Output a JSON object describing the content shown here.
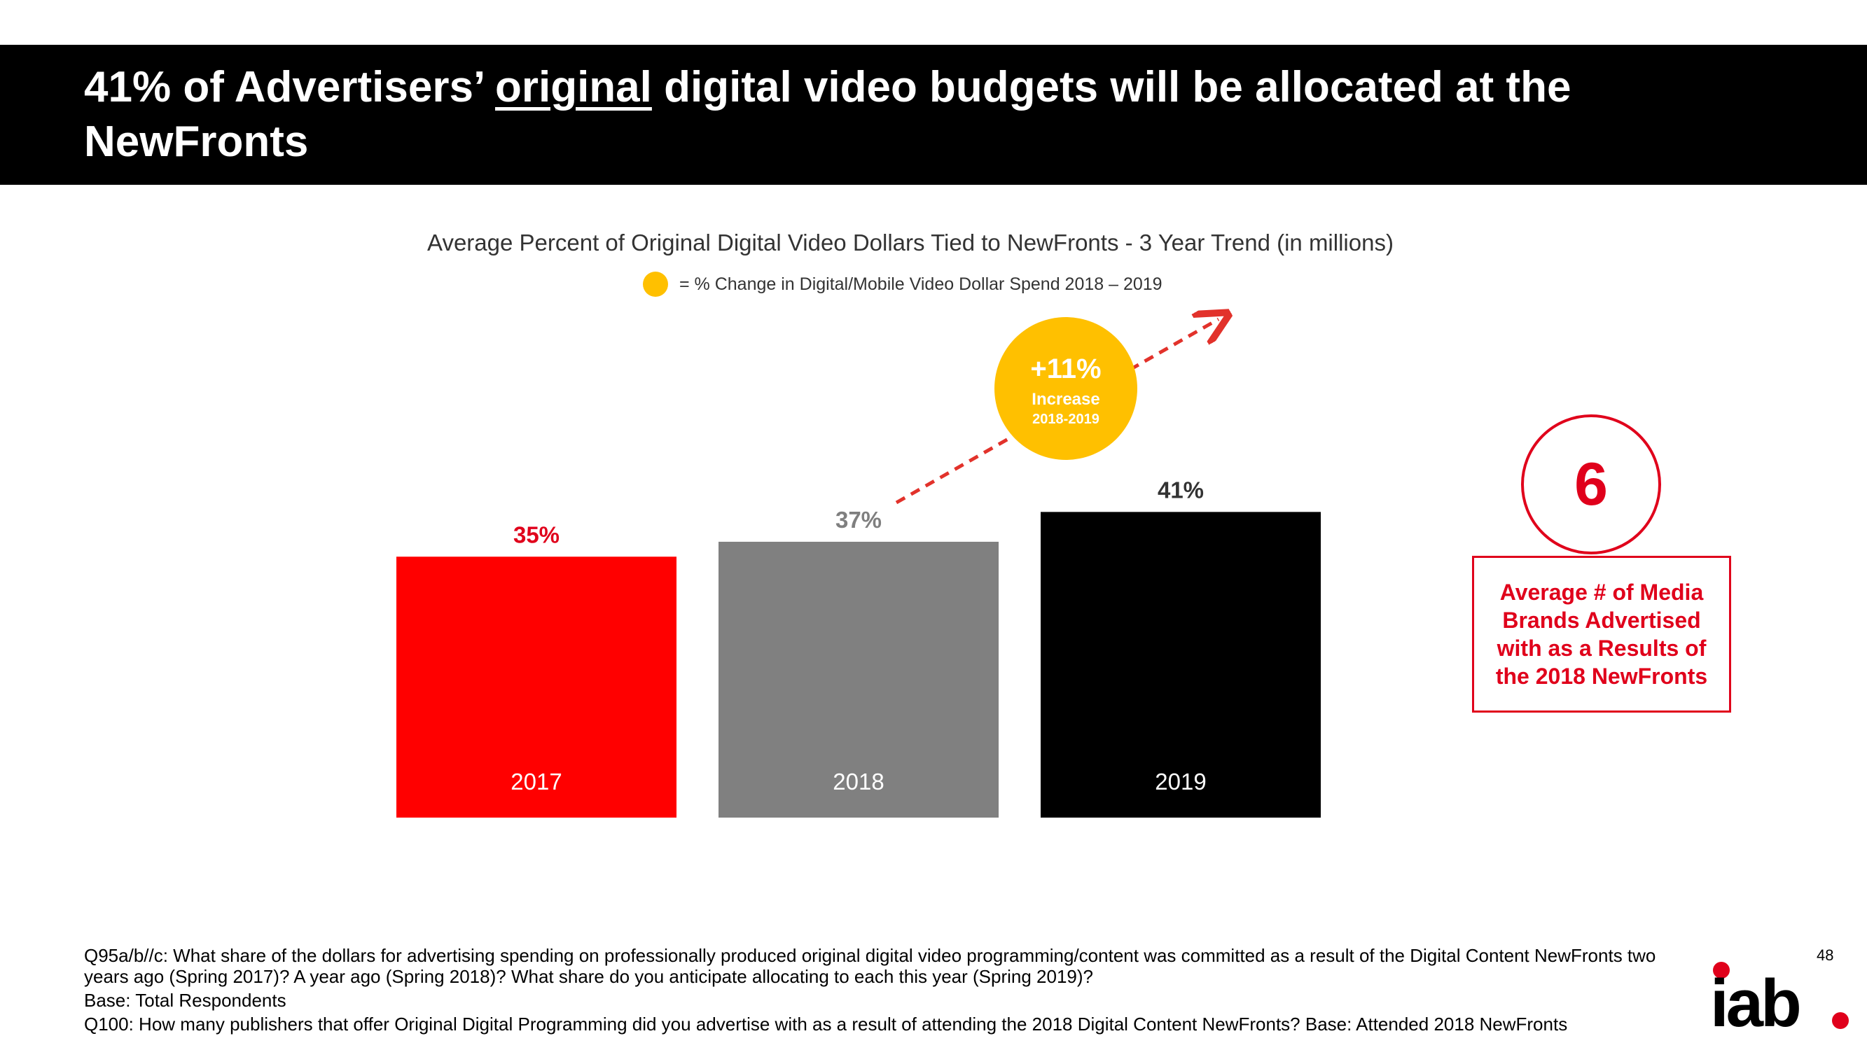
{
  "slide": {
    "title_pre": "41% of Advertisers’ ",
    "title_underlined": "original",
    "title_post": " digital video budgets will be allocated at the NewFronts",
    "page_number": "48"
  },
  "legend": {
    "text": "= % Change in Digital/Mobile Video Dollar Spend  2018 – 2019",
    "color": "#FFC000"
  },
  "badge": {
    "value": "+11%",
    "label": "Increase",
    "period": "2018-2019",
    "color": "#FFC000",
    "arrow_color": "#E2322B"
  },
  "callout": {
    "number": "6",
    "text": "Average  # of Media Brands Advertised with as a Results of the 2018 NewFronts",
    "color": "#E0001B"
  },
  "footnotes": {
    "q95": "Q95a/b//c: What share of the dollars for advertising spending on professionally produced original digital video programming/content was committed as a result of the Digital Content NewFronts two years ago (Spring 2017)?  A year ago (Spring 2018)? What share do you anticipate allocating to each this year (Spring 2019)?",
    "base": "Base:  Total Respondents",
    "q100": "Q100: How many publishers that offer Original Digital Programming did you advertise with as a result of attending the 2018 Digital Content NewFronts? Base: Attended 2018 NewFronts"
  },
  "logo": {
    "text": "iab",
    "dot_color": "#E0001B",
    "icon": "iab-logo-icon"
  },
  "chart_data": {
    "type": "bar",
    "title": "Average Percent of Original Digital Video Dollars Tied to NewFronts - 3 Year Trend  (in millions)",
    "categories": [
      "2017",
      "2018",
      "2019"
    ],
    "values": [
      35,
      37,
      41
    ],
    "value_labels": [
      "35%",
      "37%",
      "41%"
    ],
    "bar_colors": [
      "#FF0000",
      "#808080",
      "#000000"
    ],
    "label_colors": [
      "#E0001B",
      "#7F7F7F",
      "#333333"
    ],
    "grid": false,
    "legend_placement": "top-center"
  }
}
